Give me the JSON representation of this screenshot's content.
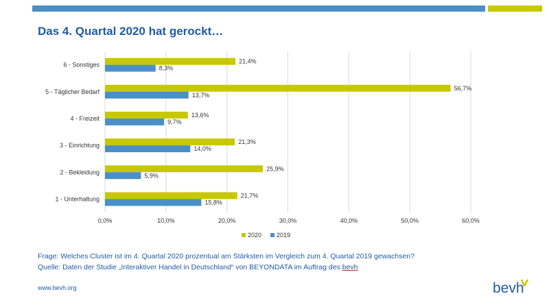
{
  "page": {
    "title": "Das 4. Quartal 2020 hat gerockt…",
    "note_question": "Frage: Welches Cluster ist im 4. Quartal 2020 prozentual am Stärksten im Vergleich zum 4. Quartal 2019 gewachsen?",
    "note_source_prefix": "Quelle: Daten der Studie „Interaktiver Handel in Deutschland“ von BEYONDATA im Auftrag des ",
    "note_source_link": "bevh",
    "website": "www.bevh.org",
    "logo_text": "bevh"
  },
  "colors": {
    "series_2020": "#c8c800",
    "series_2019": "#4a8fc7",
    "title": "#1f5aa6",
    "topbar_blue": "#4a8fc7",
    "topbar_yellow": "#c8c800"
  },
  "chart_data": {
    "type": "bar",
    "orientation": "horizontal",
    "categories": [
      "6 - Sonstiges",
      "5 - Täglicher Bedarf",
      "4 - Freizeit",
      "3 - Einrichtung",
      "2 - Bekleidung",
      "1 - Unterhaltung"
    ],
    "series": [
      {
        "name": "2020",
        "values": [
          21.4,
          56.7,
          13.6,
          21.3,
          25.9,
          21.7
        ],
        "labels": [
          "21,4%",
          "56,7%",
          "13,6%",
          "21,3%",
          "25,9%",
          "21,7%"
        ]
      },
      {
        "name": "2019",
        "values": [
          8.3,
          13.7,
          9.7,
          14.0,
          5.9,
          15.8
        ],
        "labels": [
          "8,3%",
          "13,7%",
          "9,7%",
          "14,0%",
          "5,9%",
          "15,8%"
        ]
      }
    ],
    "xlim": [
      0,
      60
    ],
    "xticks": [
      0,
      10,
      20,
      30,
      40,
      50,
      60
    ],
    "xtick_labels": [
      "0,0%",
      "10,0%",
      "20,0%",
      "30,0%",
      "40,0%",
      "50,0%",
      "60,0%"
    ],
    "grid": true,
    "legend_position": "bottom"
  }
}
